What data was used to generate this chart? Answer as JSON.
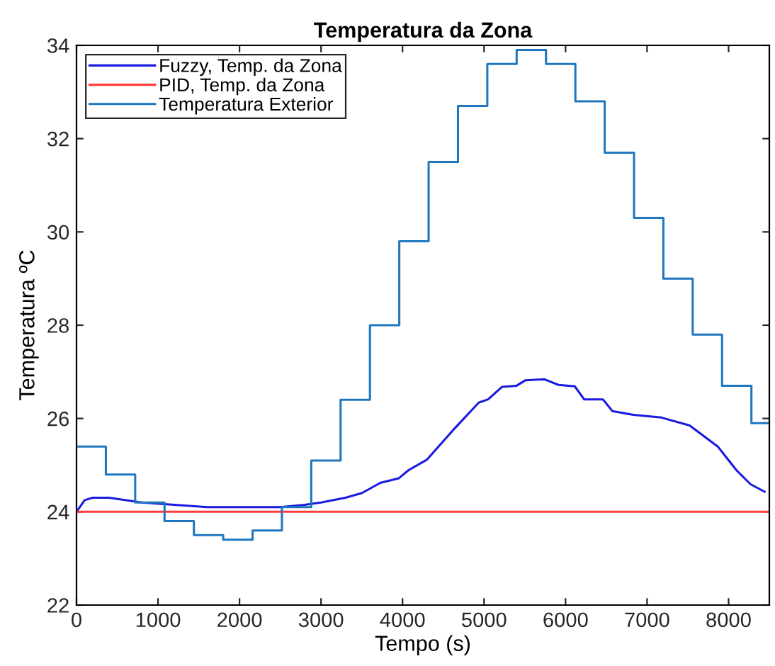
{
  "chart_data": {
    "type": "line",
    "title": "Temperatura da Zona",
    "xlabel": "Tempo (s)",
    "ylabel": "Temperatura ºC",
    "xlim": [
      0,
      8500
    ],
    "xticks": [
      0,
      1000,
      2000,
      3000,
      4000,
      5000,
      6000,
      7000,
      8000
    ],
    "ylim": [
      22,
      34
    ],
    "yticks": [
      22,
      24,
      26,
      28,
      30,
      32,
      34
    ],
    "grid": false,
    "legend": "top left",
    "marker": "none",
    "line_style": "solid",
    "series": [
      {
        "name": "Fuzzy, Temp. da Zona",
        "color": "#1a1ae0",
        "x": [
          0,
          100,
          200,
          400,
          800,
          1200,
          1600,
          2000,
          2500,
          2800,
          3000,
          3300,
          3500,
          3727,
          3956,
          4072,
          4301,
          4646,
          4935,
          5050,
          5222,
          5395,
          5510,
          5741,
          5913,
          6113,
          6228,
          6459,
          6574,
          6832,
          7177,
          7522,
          7867,
          8097,
          8270,
          8442
        ],
        "values": [
          24.0,
          24.25,
          24.3,
          24.3,
          24.2,
          24.15,
          24.1,
          24.1,
          24.1,
          24.15,
          24.2,
          24.3,
          24.4,
          24.62,
          24.72,
          24.89,
          25.12,
          25.8,
          26.34,
          26.41,
          26.68,
          26.7,
          26.82,
          26.84,
          26.72,
          26.69,
          26.41,
          26.41,
          26.16,
          26.08,
          26.02,
          25.85,
          25.4,
          24.89,
          24.59,
          24.43
        ]
      },
      {
        "name": "PID, Temp. da Zona",
        "color": "#ff3b3b",
        "x": [
          0,
          8500
        ],
        "values": [
          24.0,
          24.0
        ]
      },
      {
        "name": "Temperatura Exterior",
        "type": "step",
        "color": "#1f77c0",
        "x": [
          0,
          360,
          720,
          1080,
          1440,
          1800,
          2160,
          2520,
          2880,
          3240,
          3600,
          3960,
          4320,
          4680,
          5040,
          5400,
          5760,
          6120,
          6480,
          6840,
          7200,
          7560,
          7920,
          8280,
          8500
        ],
        "values": [
          25.4,
          24.8,
          24.2,
          23.8,
          23.5,
          23.4,
          23.6,
          24.1,
          25.1,
          26.4,
          28.0,
          29.8,
          31.5,
          32.7,
          33.6,
          33.9,
          33.6,
          32.8,
          31.7,
          30.3,
          29.0,
          27.8,
          26.7,
          25.9,
          25.9
        ]
      }
    ]
  }
}
